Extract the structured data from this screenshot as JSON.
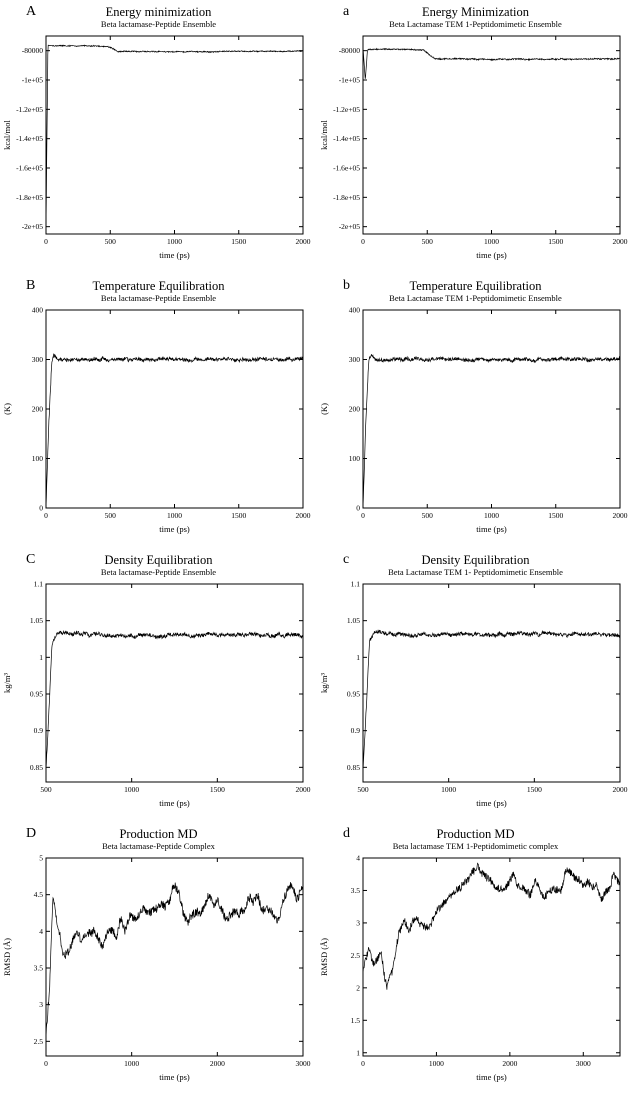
{
  "figure": {
    "background": "#ffffff",
    "line_color": "#000000"
  },
  "chart_data": [
    {
      "panel_label": "A",
      "type": "line",
      "title": "Energy minimization",
      "subtitle": "Beta lactamase-Peptide Ensemble",
      "xlabel": "time (ps)",
      "ylabel": "kcal/mol",
      "xlim": [
        0,
        2000
      ],
      "ylim": [
        -205000,
        -70000
      ],
      "xticks": [
        0,
        500,
        1000,
        1500,
        2000
      ],
      "xtick_labels": [
        "0",
        "500",
        "1000",
        "1500",
        "2000"
      ],
      "yticks": [
        -200000,
        -180000,
        -160000,
        -140000,
        -120000,
        -100000,
        -80000
      ],
      "ytick_labels": [
        "-2e+05",
        "-1.8e+05",
        "-1.6e+05",
        "-1.4e+05",
        "-1.2e+05",
        "-1e+05",
        "-80000"
      ],
      "anchors": [
        [
          0,
          -200000
        ],
        [
          15,
          -76500
        ],
        [
          480,
          -77000
        ],
        [
          560,
          -80500
        ],
        [
          1050,
          -80800
        ],
        [
          2000,
          -80300
        ]
      ],
      "noise_fast": 350,
      "noise_slow": 250,
      "seed": 1
    },
    {
      "panel_label": "a",
      "type": "line",
      "title": "Energy Minimization",
      "subtitle": "Beta Lactamase TEM 1-Peptidomimetic Ensemble",
      "xlabel": "time (ps)",
      "ylabel": "kcal/mol",
      "xlim": [
        0,
        2000
      ],
      "ylim": [
        -205000,
        -70000
      ],
      "xticks": [
        0,
        500,
        1000,
        1500,
        2000
      ],
      "xtick_labels": [
        "0",
        "500",
        "1000",
        "1500",
        "2000"
      ],
      "yticks": [
        -200000,
        -180000,
        -160000,
        -140000,
        -120000,
        -100000,
        -80000
      ],
      "ytick_labels": [
        "-2e+05",
        "-1.8e+05",
        "-1.6e+05",
        "-1.4e+05",
        "-1.2e+05",
        "-1e+05",
        "-80000"
      ],
      "anchors": [
        [
          0,
          -78000
        ],
        [
          18,
          -100000
        ],
        [
          35,
          -79000
        ],
        [
          470,
          -79500
        ],
        [
          560,
          -85500
        ],
        [
          1060,
          -86000
        ],
        [
          2000,
          -85500
        ]
      ],
      "noise_fast": 400,
      "noise_slow": 300,
      "seed": 2
    },
    {
      "panel_label": "B",
      "type": "line",
      "title": "Temperature Equilibration",
      "subtitle": "Beta lactamase-Peptide Ensemble",
      "xlabel": "time (ps)",
      "ylabel": "(K)",
      "xlim": [
        0,
        2000
      ],
      "ylim": [
        0,
        400
      ],
      "xticks": [
        0,
        500,
        1000,
        1500,
        2000
      ],
      "xtick_labels": [
        "0",
        "500",
        "1000",
        "1500",
        "2000"
      ],
      "yticks": [
        0,
        100,
        200,
        300,
        400
      ],
      "ytick_labels": [
        "0",
        "100",
        "200",
        "300",
        "400"
      ],
      "anchors": [
        [
          0,
          0
        ],
        [
          20,
          160
        ],
        [
          45,
          296
        ],
        [
          60,
          308
        ],
        [
          95,
          300
        ],
        [
          2000,
          300
        ]
      ],
      "noise_fast": 3.5,
      "noise_slow": 2.5,
      "seed": 3
    },
    {
      "panel_label": "b",
      "type": "line",
      "title": "Temperature Equilibration",
      "subtitle": "Beta Lactamase TEM 1-Peptidomimetic Ensemble",
      "xlabel": "time (ps)",
      "ylabel": "(K)",
      "xlim": [
        0,
        2000
      ],
      "ylim": [
        0,
        400
      ],
      "xticks": [
        0,
        500,
        1000,
        1500,
        2000
      ],
      "xtick_labels": [
        "0",
        "500",
        "1000",
        "1500",
        "2000"
      ],
      "yticks": [
        0,
        100,
        200,
        300,
        400
      ],
      "ytick_labels": [
        "0",
        "100",
        "200",
        "300",
        "400"
      ],
      "anchors": [
        [
          0,
          0
        ],
        [
          20,
          160
        ],
        [
          45,
          297
        ],
        [
          62,
          307
        ],
        [
          95,
          300
        ],
        [
          2000,
          300
        ]
      ],
      "noise_fast": 3.5,
      "noise_slow": 2.5,
      "seed": 4
    },
    {
      "panel_label": "C",
      "type": "line",
      "title": "Density Equilibration",
      "subtitle": "Beta lactamase-Peptide Ensemble",
      "xlabel": "time (ps)",
      "ylabel": "kg/m³",
      "xlim": [
        500,
        2000
      ],
      "ylim": [
        0.83,
        1.1
      ],
      "xticks": [
        500,
        1000,
        1500,
        2000
      ],
      "xtick_labels": [
        "500",
        "1000",
        "1500",
        "2000"
      ],
      "yticks": [
        0.85,
        0.9,
        0.95,
        1.0,
        1.05,
        1.1
      ],
      "ytick_labels": [
        "0.85",
        "0.9",
        "0.95",
        "1",
        "1.05",
        "1.1"
      ],
      "anchors": [
        [
          500,
          0.845
        ],
        [
          512,
          0.9
        ],
        [
          535,
          1.02
        ],
        [
          565,
          1.034
        ],
        [
          700,
          1.032
        ],
        [
          1000,
          1.029
        ],
        [
          1500,
          1.031
        ],
        [
          2000,
          1.03
        ]
      ],
      "noise_fast": 0.0025,
      "noise_slow": 0.002,
      "seed": 5
    },
    {
      "panel_label": "c",
      "type": "line",
      "title": "Density Equilibration",
      "subtitle": "Beta Lactamase TEM 1- Peptidomimetic Ensemble",
      "xlabel": "time (ps)",
      "ylabel": "kg/m³",
      "xlim": [
        500,
        2000
      ],
      "ylim": [
        0.83,
        1.1
      ],
      "xticks": [
        500,
        1000,
        1500,
        2000
      ],
      "xtick_labels": [
        "500",
        "1000",
        "1500",
        "2000"
      ],
      "yticks": [
        0.85,
        0.9,
        0.95,
        1.0,
        1.05,
        1.1
      ],
      "ytick_labels": [
        "0.85",
        "0.9",
        "0.95",
        "1",
        "1.05",
        "1.1"
      ],
      "anchors": [
        [
          500,
          0.845
        ],
        [
          512,
          0.9
        ],
        [
          538,
          1.022
        ],
        [
          570,
          1.035
        ],
        [
          720,
          1.031
        ],
        [
          1000,
          1.03
        ],
        [
          1500,
          1.032
        ],
        [
          2000,
          1.031
        ]
      ],
      "noise_fast": 0.0025,
      "noise_slow": 0.002,
      "seed": 6
    },
    {
      "panel_label": "D",
      "type": "line",
      "title": "Production MD",
      "subtitle": "Beta lactamase-Peptide Complex",
      "xlabel": "time (ps)",
      "ylabel": "RMSD (Å)",
      "xlim": [
        0,
        3000
      ],
      "ylim": [
        2.3,
        5.0
      ],
      "xticks": [
        0,
        1000,
        2000,
        3000
      ],
      "xtick_labels": [
        "0",
        "1000",
        "2000",
        "3000"
      ],
      "yticks": [
        2.5,
        3.0,
        3.5,
        4.0,
        4.5,
        5.0
      ],
      "ytick_labels": [
        "2.5",
        "3",
        "3.5",
        "4",
        "4.5",
        "5"
      ],
      "anchors": [
        [
          0,
          2.45
        ],
        [
          40,
          3.2
        ],
        [
          80,
          4.45
        ],
        [
          120,
          4.1
        ],
        [
          180,
          3.75
        ],
        [
          260,
          3.6
        ],
        [
          350,
          3.95
        ],
        [
          500,
          4.05
        ],
        [
          650,
          3.85
        ],
        [
          800,
          4.0
        ],
        [
          950,
          4.15
        ],
        [
          1100,
          4.2
        ],
        [
          1250,
          4.3
        ],
        [
          1400,
          4.45
        ],
        [
          1550,
          4.6
        ],
        [
          1650,
          4.15
        ],
        [
          1800,
          4.35
        ],
        [
          1950,
          4.45
        ],
        [
          2100,
          4.05
        ],
        [
          2250,
          4.35
        ],
        [
          2400,
          4.5
        ],
        [
          2550,
          4.3
        ],
        [
          2700,
          4.25
        ],
        [
          2850,
          4.55
        ],
        [
          3000,
          4.5
        ]
      ],
      "noise_fast": 0.06,
      "noise_slow": 0.13,
      "seed": 7
    },
    {
      "panel_label": "d",
      "type": "line",
      "title": "Production MD",
      "subtitle": "Beta lactamase TEM 1-Peptidomimetic complex",
      "xlabel": "time (ps)",
      "ylabel": "RMSD (Å)",
      "xlim": [
        0,
        3500
      ],
      "ylim": [
        0.95,
        4.0
      ],
      "xticks": [
        0,
        1000,
        2000,
        3000
      ],
      "xtick_labels": [
        "0",
        "1000",
        "2000",
        "3000"
      ],
      "yticks": [
        1.0,
        1.5,
        2.0,
        2.5,
        3.0,
        3.5,
        4.0
      ],
      "ytick_labels": [
        "1",
        "1.5",
        "2",
        "2.5",
        "3",
        "3.5",
        "4"
      ],
      "anchors": [
        [
          0,
          2.25
        ],
        [
          80,
          2.65
        ],
        [
          150,
          2.4
        ],
        [
          250,
          2.45
        ],
        [
          320,
          2.05
        ],
        [
          400,
          2.3
        ],
        [
          480,
          2.9
        ],
        [
          560,
          3.1
        ],
        [
          640,
          2.85
        ],
        [
          720,
          3.05
        ],
        [
          850,
          2.95
        ],
        [
          1000,
          3.15
        ],
        [
          1150,
          3.3
        ],
        [
          1300,
          3.55
        ],
        [
          1450,
          3.75
        ],
        [
          1600,
          3.8
        ],
        [
          1750,
          3.65
        ],
        [
          1900,
          3.55
        ],
        [
          2050,
          3.65
        ],
        [
          2200,
          3.5
        ],
        [
          2350,
          3.55
        ],
        [
          2500,
          3.4
        ],
        [
          2650,
          3.5
        ],
        [
          2800,
          3.75
        ],
        [
          2950,
          3.6
        ],
        [
          3100,
          3.55
        ],
        [
          3250,
          3.45
        ],
        [
          3400,
          3.7
        ],
        [
          3500,
          3.6
        ]
      ],
      "noise_fast": 0.06,
      "noise_slow": 0.1,
      "seed": 8
    }
  ]
}
